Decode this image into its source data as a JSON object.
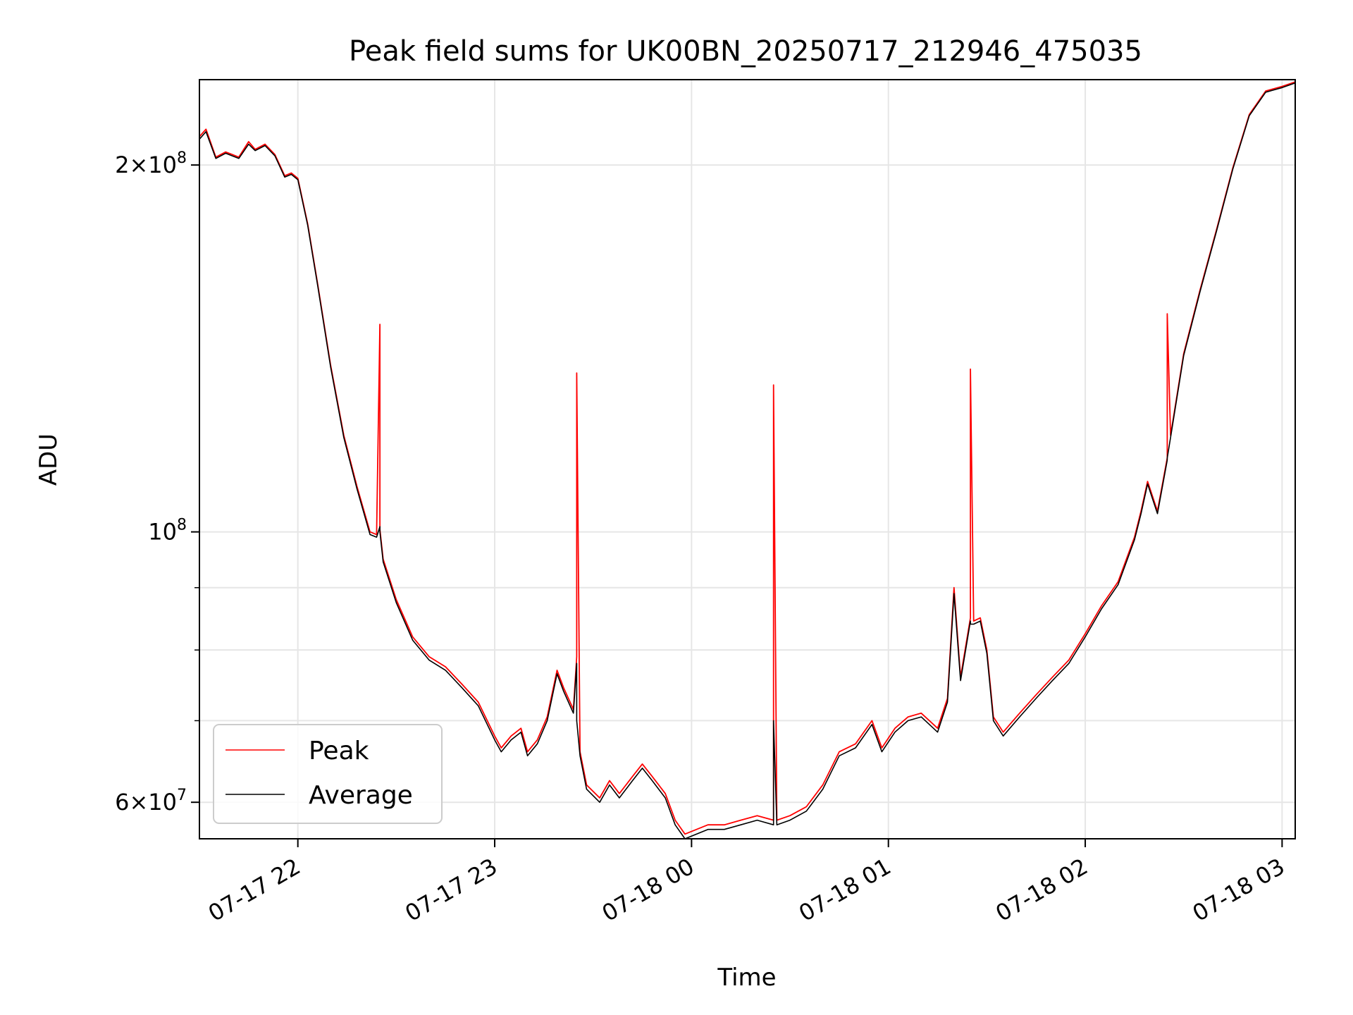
{
  "chart_data": {
    "type": "line",
    "title": "Peak field sums for UK00BN_20250717_212946_475035",
    "xlabel": "Time",
    "ylabel": "ADU",
    "y_scale": "log",
    "ylim": [
      56000000,
      235000000
    ],
    "xlim": [
      "07-17 21:30",
      "07-18 03:04"
    ],
    "grid": true,
    "legend_position": "lower-left",
    "x_ticks": [
      {
        "t": "07-17 22:00",
        "label": "07-17 22"
      },
      {
        "t": "07-17 23:00",
        "label": "07-17 23"
      },
      {
        "t": "07-18 00:00",
        "label": "07-18 00"
      },
      {
        "t": "07-18 01:00",
        "label": "07-18 01"
      },
      {
        "t": "07-18 02:00",
        "label": "07-18 02"
      },
      {
        "t": "07-18 03:00",
        "label": "07-18 03"
      }
    ],
    "y_major_ticks": [
      {
        "value": 60000000,
        "mantissa": "6",
        "exponent": "7"
      },
      {
        "value": 100000000,
        "mantissa": "",
        "exponent": "8"
      },
      {
        "value": 200000000,
        "mantissa": "2",
        "exponent": "8"
      }
    ],
    "y_minor_gridlines": [
      70000000,
      80000000,
      90000000
    ],
    "series": [
      {
        "name": "Peak",
        "color": "#ff0000",
        "x": [
          "07-17 21:30",
          "07-17 21:32",
          "07-17 21:35",
          "07-17 21:38",
          "07-17 21:40",
          "07-17 21:42",
          "07-17 21:45",
          "07-17 21:47",
          "07-17 21:50",
          "07-17 21:53",
          "07-17 21:56",
          "07-17 21:58",
          "07-17 22:00",
          "07-17 22:03",
          "07-17 22:06",
          "07-17 22:10",
          "07-17 22:14",
          "07-17 22:18",
          "07-17 22:22",
          "07-17 22:24",
          "07-17 22:25",
          "07-17 22:25",
          "07-17 22:26",
          "07-17 22:30",
          "07-17 22:35",
          "07-17 22:40",
          "07-17 22:45",
          "07-17 22:50",
          "07-17 22:55",
          "07-17 23:00",
          "07-17 23:02",
          "07-17 23:05",
          "07-17 23:08",
          "07-17 23:10",
          "07-17 23:13",
          "07-17 23:16",
          "07-17 23:19",
          "07-17 23:21",
          "07-17 23:24",
          "07-17 23:25",
          "07-17 23:25",
          "07-17 23:26",
          "07-17 23:28",
          "07-17 23:32",
          "07-17 23:35",
          "07-17 23:38",
          "07-17 23:42",
          "07-17 23:45",
          "07-17 23:48",
          "07-17 23:52",
          "07-17 23:55",
          "07-17 23:58",
          "07-18 00:05",
          "07-18 00:10",
          "07-18 00:15",
          "07-18 00:20",
          "07-18 00:25",
          "07-18 00:25",
          "07-18 00:26",
          "07-18 00:30",
          "07-18 00:35",
          "07-18 00:40",
          "07-18 00:45",
          "07-18 00:50",
          "07-18 00:55",
          "07-18 00:58",
          "07-18 01:02",
          "07-18 01:06",
          "07-18 01:10",
          "07-18 01:15",
          "07-18 01:18",
          "07-18 01:20",
          "07-18 01:22",
          "07-18 01:25",
          "07-18 01:25",
          "07-18 01:26",
          "07-18 01:28",
          "07-18 01:30",
          "07-18 01:32",
          "07-18 01:35",
          "07-18 01:40",
          "07-18 01:45",
          "07-18 01:50",
          "07-18 01:55",
          "07-18 02:00",
          "07-18 02:05",
          "07-18 02:10",
          "07-18 02:15",
          "07-18 02:17",
          "07-18 02:19",
          "07-18 02:22",
          "07-18 02:25",
          "07-18 02:25",
          "07-18 02:26",
          "07-18 02:30",
          "07-18 02:35",
          "07-18 02:40",
          "07-18 02:45",
          "07-18 02:50",
          "07-18 02:55",
          "07-18 03:00",
          "07-18 03:04"
        ],
        "y": [
          211000000,
          214000000,
          203000000,
          205000000,
          204000000,
          203000000,
          209000000,
          206000000,
          208000000,
          204000000,
          196000000,
          197000000,
          195000000,
          179000000,
          160000000,
          137000000,
          120000000,
          109000000,
          100000000,
          99500000,
          148000000,
          100500000,
          95000000,
          88000000,
          82000000,
          79000000,
          77500000,
          75000000,
          72500000,
          68000000,
          66500000,
          68000000,
          69000000,
          66000000,
          67500000,
          70500000,
          77000000,
          74500000,
          71500000,
          79000000,
          135000000,
          66000000,
          62000000,
          60500000,
          62500000,
          61000000,
          63000000,
          64500000,
          63000000,
          61000000,
          58000000,
          56500000,
          57500000,
          57500000,
          58000000,
          58500000,
          58000000,
          132000000,
          58000000,
          58500000,
          59500000,
          62000000,
          66000000,
          67000000,
          70000000,
          66500000,
          69000000,
          70500000,
          71000000,
          69000000,
          73000000,
          90000000,
          76000000,
          85000000,
          136000000,
          84500000,
          85000000,
          80000000,
          70500000,
          68500000,
          71000000,
          73500000,
          76000000,
          78500000,
          82500000,
          87000000,
          91000000,
          99000000,
          104000000,
          110000000,
          104000000,
          115000000,
          151000000,
          120000000,
          140000000,
          158000000,
          177000000,
          199000000,
          220000000,
          230000000,
          232000000,
          234000000
        ]
      },
      {
        "name": "Average",
        "color": "#000000",
        "x": [
          "07-17 21:30",
          "07-17 21:32",
          "07-17 21:35",
          "07-17 21:38",
          "07-17 21:40",
          "07-17 21:42",
          "07-17 21:45",
          "07-17 21:47",
          "07-17 21:50",
          "07-17 21:53",
          "07-17 21:56",
          "07-17 21:58",
          "07-17 22:00",
          "07-17 22:03",
          "07-17 22:06",
          "07-17 22:10",
          "07-17 22:14",
          "07-17 22:18",
          "07-17 22:22",
          "07-17 22:24",
          "07-17 22:25",
          "07-17 22:25",
          "07-17 22:26",
          "07-17 22:30",
          "07-17 22:35",
          "07-17 22:40",
          "07-17 22:45",
          "07-17 22:50",
          "07-17 22:55",
          "07-17 23:00",
          "07-17 23:02",
          "07-17 23:05",
          "07-17 23:08",
          "07-17 23:10",
          "07-17 23:13",
          "07-17 23:16",
          "07-17 23:19",
          "07-17 23:21",
          "07-17 23:24",
          "07-17 23:25",
          "07-17 23:25",
          "07-17 23:26",
          "07-17 23:28",
          "07-17 23:32",
          "07-17 23:35",
          "07-17 23:38",
          "07-17 23:42",
          "07-17 23:45",
          "07-17 23:48",
          "07-17 23:52",
          "07-17 23:55",
          "07-17 23:58",
          "07-18 00:05",
          "07-18 00:10",
          "07-18 00:15",
          "07-18 00:20",
          "07-18 00:25",
          "07-18 00:25",
          "07-18 00:26",
          "07-18 00:30",
          "07-18 00:35",
          "07-18 00:40",
          "07-18 00:45",
          "07-18 00:50",
          "07-18 00:55",
          "07-18 00:58",
          "07-18 01:02",
          "07-18 01:06",
          "07-18 01:10",
          "07-18 01:15",
          "07-18 01:18",
          "07-18 01:20",
          "07-18 01:22",
          "07-18 01:25",
          "07-18 01:25",
          "07-18 01:26",
          "07-18 01:28",
          "07-18 01:30",
          "07-18 01:32",
          "07-18 01:35",
          "07-18 01:40",
          "07-18 01:45",
          "07-18 01:50",
          "07-18 01:55",
          "07-18 02:00",
          "07-18 02:05",
          "07-18 02:10",
          "07-18 02:15",
          "07-18 02:17",
          "07-18 02:19",
          "07-18 02:22",
          "07-18 02:25",
          "07-18 02:25",
          "07-18 02:26",
          "07-18 02:30",
          "07-18 02:35",
          "07-18 02:40",
          "07-18 02:45",
          "07-18 02:50",
          "07-18 02:55",
          "07-18 03:00",
          "07-18 03:04"
        ],
        "y": [
          210000000,
          213000000,
          202500000,
          204500000,
          203500000,
          202500000,
          208000000,
          205500000,
          207500000,
          203500000,
          195500000,
          196500000,
          194500000,
          178500000,
          159500000,
          136500000,
          119500000,
          108500000,
          99500000,
          99000000,
          101000000,
          100000000,
          94500000,
          87500000,
          81500000,
          78500000,
          77000000,
          74500000,
          72000000,
          67500000,
          66000000,
          67500000,
          68500000,
          65500000,
          67000000,
          70000000,
          76500000,
          74000000,
          71000000,
          78000000,
          70000000,
          65500000,
          61500000,
          60000000,
          62000000,
          60500000,
          62500000,
          64000000,
          62500000,
          60500000,
          57500000,
          56000000,
          57000000,
          57000000,
          57500000,
          58000000,
          57500000,
          70000000,
          57500000,
          58000000,
          59000000,
          61500000,
          65500000,
          66500000,
          69500000,
          66000000,
          68500000,
          70000000,
          70500000,
          68500000,
          72500000,
          89000000,
          75500000,
          84500000,
          84000000,
          84000000,
          84500000,
          79500000,
          70000000,
          68000000,
          70500000,
          73000000,
          75500000,
          78000000,
          82000000,
          86500000,
          90500000,
          98500000,
          103500000,
          109500000,
          103500000,
          114500000,
          115000000,
          119500000,
          139500000,
          157500000,
          176500000,
          198500000,
          219500000,
          229500000,
          231500000,
          233500000
        ]
      }
    ]
  }
}
